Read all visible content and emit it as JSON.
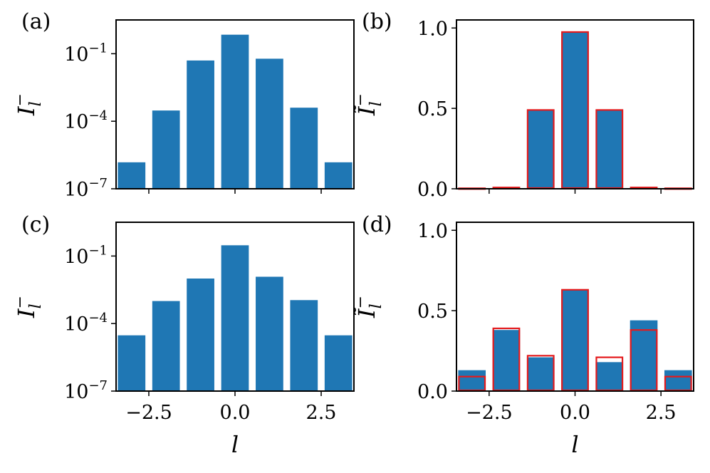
{
  "chart_data": [
    {
      "panel": "(a)",
      "type": "bar",
      "scale": "log",
      "x": [
        -3,
        -2,
        -1,
        0,
        1,
        2,
        3
      ],
      "values": [
        1.5e-06,
        0.0003,
        0.05,
        0.7,
        0.06,
        0.0004,
        1.5e-06
      ],
      "ylim_exp": [
        -7,
        0.5
      ],
      "yticks": [
        {
          "base": "10",
          "exp": "−1",
          "value": -1
        },
        {
          "base": "10",
          "exp": "−4",
          "value": -4
        },
        {
          "base": "10",
          "exp": "−7",
          "value": -7
        }
      ],
      "ylabel": {
        "main": "I",
        "sub": "l",
        "sup": "−"
      },
      "xlabel": "",
      "xticks": [],
      "xlim": [
        -3.45,
        3.45
      ],
      "colors": {
        "bar": "#1f77b4"
      }
    },
    {
      "panel": "(b)",
      "type": "bar",
      "scale": "linear",
      "x": [
        -3,
        -2,
        -1,
        0,
        1,
        2,
        3
      ],
      "values": [
        0.003,
        0.008,
        0.49,
        0.975,
        0.49,
        0.008,
        0.003
      ],
      "overlay_values": [
        0.003,
        0.008,
        0.49,
        0.975,
        0.49,
        0.008,
        0.003
      ],
      "ylim": [
        0,
        1.05
      ],
      "yticks": [
        "0.0",
        "0.5",
        "1.0"
      ],
      "ytick_values": [
        0,
        0.5,
        1.0
      ],
      "ylabel": {
        "main": "Ĩ",
        "sub": "l",
        "sup": "−"
      },
      "xlabel": "",
      "xticks": [],
      "xlim": [
        -3.45,
        3.45
      ],
      "colors": {
        "bar": "#1f77b4",
        "overlay": "#e41a1c"
      }
    },
    {
      "panel": "(c)",
      "type": "bar",
      "scale": "log",
      "x": [
        -3,
        -2,
        -1,
        0,
        1,
        2,
        3
      ],
      "values": [
        3e-05,
        0.001,
        0.01,
        0.3,
        0.012,
        0.0011,
        3e-05
      ],
      "ylim_exp": [
        -7,
        0.5
      ],
      "yticks": [
        {
          "base": "10",
          "exp": "−1",
          "value": -1
        },
        {
          "base": "10",
          "exp": "−4",
          "value": -4
        },
        {
          "base": "10",
          "exp": "−7",
          "value": -7
        }
      ],
      "ylabel": {
        "main": "I",
        "sub": "l",
        "sup": "−"
      },
      "xlabel": "l",
      "xticks": [
        "−2.5",
        "0.0",
        "2.5"
      ],
      "xtick_values": [
        -2.5,
        0,
        2.5
      ],
      "xlim": [
        -3.45,
        3.45
      ],
      "colors": {
        "bar": "#1f77b4"
      }
    },
    {
      "panel": "(d)",
      "type": "bar",
      "scale": "linear",
      "x": [
        -3,
        -2,
        -1,
        0,
        1,
        2,
        3
      ],
      "values": [
        0.13,
        0.38,
        0.21,
        0.63,
        0.18,
        0.44,
        0.13
      ],
      "overlay_values": [
        0.09,
        0.39,
        0.22,
        0.63,
        0.21,
        0.38,
        0.09
      ],
      "ylim": [
        0,
        1.05
      ],
      "yticks": [
        "0.0",
        "0.5",
        "1.0"
      ],
      "ytick_values": [
        0,
        0.5,
        1.0
      ],
      "ylabel": {
        "main": "Ĩ",
        "sub": "l",
        "sup": "−"
      },
      "xlabel": "l",
      "xticks": [
        "−2.5",
        "0.0",
        "2.5"
      ],
      "xtick_values": [
        -2.5,
        0,
        2.5
      ],
      "xlim": [
        -3.45,
        3.45
      ],
      "colors": {
        "bar": "#1f77b4",
        "overlay": "#e41a1c"
      }
    }
  ]
}
